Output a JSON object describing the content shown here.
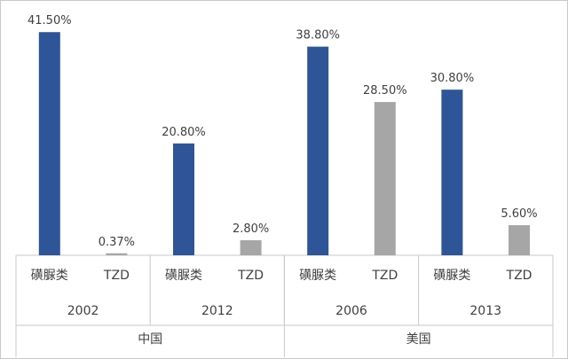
{
  "chart_data": {
    "type": "bar",
    "ylim": [
      0,
      45
    ],
    "grid": false,
    "legend": "none",
    "colors": {
      "磺脲类": "#2e5597",
      "TZD": "#a6a6a6"
    },
    "groups": [
      {
        "region": "中国",
        "years": [
          {
            "year": "2002",
            "bars": [
              {
                "drug": "磺脲类",
                "value": 41.5,
                "label": "41.50%"
              },
              {
                "drug": "TZD",
                "value": 0.37,
                "label": "0.37%"
              }
            ]
          },
          {
            "year": "2012",
            "bars": [
              {
                "drug": "磺脲类",
                "value": 20.8,
                "label": "20.80%"
              },
              {
                "drug": "TZD",
                "value": 2.8,
                "label": "2.80%"
              }
            ]
          }
        ]
      },
      {
        "region": "美国",
        "years": [
          {
            "year": "2006",
            "bars": [
              {
                "drug": "磺脲类",
                "value": 38.8,
                "label": "38.80%"
              },
              {
                "drug": "TZD",
                "value": 28.5,
                "label": "28.50%"
              }
            ]
          },
          {
            "year": "2013",
            "bars": [
              {
                "drug": "磺脲类",
                "value": 30.8,
                "label": "30.80%"
              },
              {
                "drug": "TZD",
                "value": 5.6,
                "label": "5.60%"
              }
            ]
          }
        ]
      }
    ]
  }
}
